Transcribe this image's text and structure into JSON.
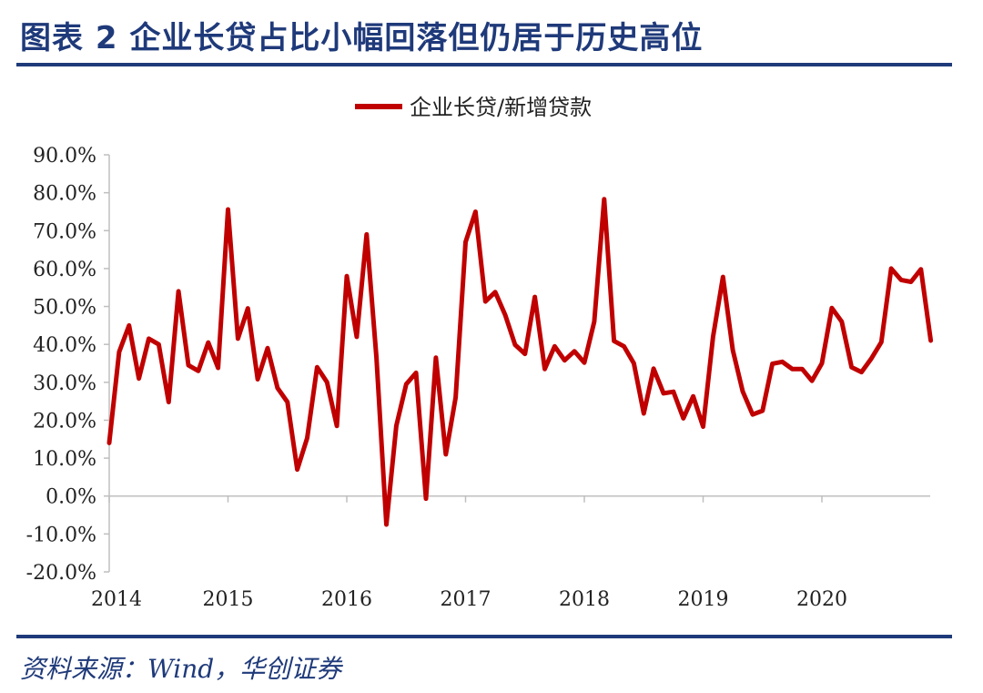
{
  "figure": {
    "title": "图表 2   企业长贷占比小幅回落但仍居于历史高位",
    "source": "资料来源：Wind，华创证券"
  },
  "colors": {
    "title": "#1f3a7a",
    "series": "#c00000",
    "axis": "#bfbfbf"
  },
  "chart_data": {
    "type": "line",
    "legend_position": "top-center",
    "grid": false,
    "ylim": [
      -20,
      90
    ],
    "y_ticks": [
      90,
      80,
      70,
      60,
      50,
      40,
      30,
      20,
      10,
      0,
      -10,
      -20
    ],
    "y_tick_labels": [
      "90.0%",
      "80.0%",
      "70.0%",
      "60.0%",
      "50.0%",
      "40.0%",
      "30.0%",
      "20.0%",
      "10.0%",
      "0.0%",
      "-10.0%",
      "-20.0%"
    ],
    "x_ticks": [
      "2014",
      "2015",
      "2016",
      "2017",
      "2018",
      "2019",
      "2020"
    ],
    "series": [
      {
        "name": "企业长贷/新增贷款",
        "x": [
          "2014-01",
          "2014-02",
          "2014-03",
          "2014-04",
          "2014-05",
          "2014-06",
          "2014-07",
          "2014-08",
          "2014-09",
          "2014-10",
          "2014-11",
          "2014-12",
          "2015-01",
          "2015-02",
          "2015-03",
          "2015-04",
          "2015-05",
          "2015-06",
          "2015-07",
          "2015-08",
          "2015-09",
          "2015-10",
          "2015-11",
          "2015-12",
          "2016-01",
          "2016-02",
          "2016-03",
          "2016-04",
          "2016-05",
          "2016-06",
          "2016-07",
          "2016-08",
          "2016-09",
          "2016-10",
          "2016-11",
          "2016-12",
          "2017-01",
          "2017-02",
          "2017-03",
          "2017-04",
          "2017-05",
          "2017-06",
          "2017-07",
          "2017-08",
          "2017-09",
          "2017-10",
          "2017-11",
          "2017-12",
          "2018-01",
          "2018-02",
          "2018-03",
          "2018-04",
          "2018-05",
          "2018-06",
          "2018-07",
          "2018-08",
          "2018-09",
          "2018-10",
          "2018-11",
          "2018-12",
          "2019-01",
          "2019-02",
          "2019-03",
          "2019-04",
          "2019-05",
          "2019-06",
          "2019-07",
          "2019-08",
          "2019-09",
          "2019-10",
          "2019-11",
          "2019-12",
          "2020-01",
          "2020-02",
          "2020-03",
          "2020-04",
          "2020-05",
          "2020-06",
          "2020-07",
          "2020-08",
          "2020-09",
          "2020-10",
          "2020-11",
          "2020-12"
        ],
        "values": [
          14.0,
          38.0,
          45.0,
          31.0,
          41.5,
          40.0,
          24.8,
          54.0,
          34.5,
          33.0,
          40.5,
          33.8,
          75.6,
          41.5,
          49.5,
          30.8,
          39.0,
          28.5,
          24.8,
          7.0,
          15.3,
          34.0,
          30.0,
          18.5,
          58.0,
          42.0,
          69.0,
          36.5,
          -7.5,
          18.5,
          29.5,
          32.5,
          -0.7,
          36.5,
          11.0,
          26.0,
          67.0,
          75.0,
          51.3,
          53.8,
          47.8,
          39.9,
          37.5,
          52.5,
          33.5,
          39.5,
          35.8,
          38.2,
          35.2,
          46.0,
          78.3,
          40.9,
          39.5,
          35.0,
          21.8,
          33.6,
          27.1,
          27.5,
          20.5,
          26.3,
          18.3,
          42.0,
          57.8,
          38.5,
          27.6,
          21.5,
          22.5,
          34.9,
          35.4,
          33.5,
          33.5,
          30.4,
          35.0,
          49.6,
          46.0,
          34.0,
          32.7,
          36.3,
          40.6,
          60.0,
          57.0,
          56.5,
          59.8,
          41.0
        ]
      }
    ]
  }
}
